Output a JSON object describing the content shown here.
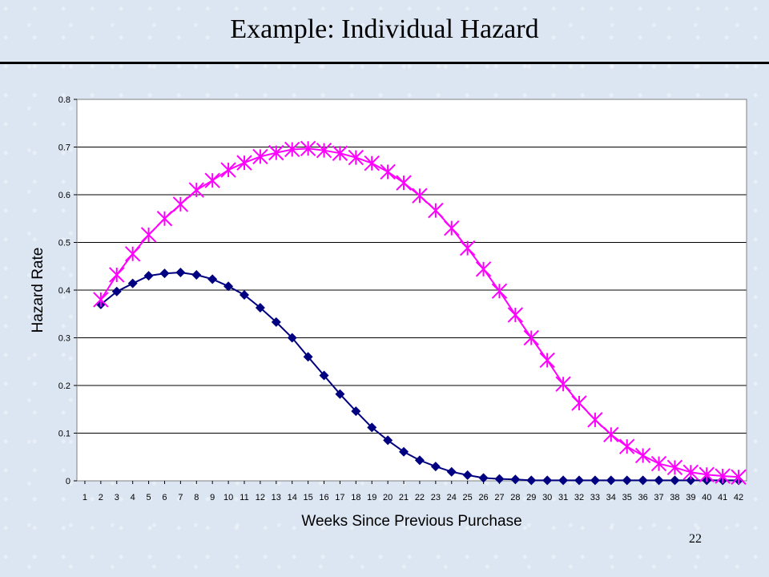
{
  "slide": {
    "title": "Example: Individual Hazard",
    "page_number": "22"
  },
  "chart_data": {
    "type": "line",
    "title": "",
    "xlabel": "Weeks Since Previous Purchase",
    "ylabel": "Hazard Rate",
    "x": [
      1,
      2,
      3,
      4,
      5,
      6,
      7,
      8,
      9,
      10,
      11,
      12,
      13,
      14,
      15,
      16,
      17,
      18,
      19,
      20,
      21,
      22,
      23,
      24,
      25,
      26,
      27,
      28,
      29,
      30,
      31,
      32,
      33,
      34,
      35,
      36,
      37,
      38,
      39,
      40,
      41,
      42
    ],
    "ylim": [
      0,
      0.8
    ],
    "yticks": [
      "0",
      "0.1",
      "0.2",
      "0.3",
      "0.4",
      "0.5",
      "0.6",
      "0.7",
      "0.8"
    ],
    "grid": true,
    "series": [
      {
        "color": "#000080",
        "marker": "diamond",
        "x": [
          2,
          3,
          4,
          5,
          6,
          7,
          8,
          9,
          10,
          11,
          12,
          13,
          14,
          15,
          16,
          17,
          18,
          19,
          20,
          21,
          22,
          23,
          24,
          25,
          26,
          27,
          28,
          29,
          30,
          31,
          32,
          33,
          34,
          35,
          36,
          37,
          38,
          39,
          40,
          41,
          42
        ],
        "values": [
          0.37,
          0.397,
          0.414,
          0.43,
          0.435,
          0.437,
          0.432,
          0.423,
          0.408,
          0.39,
          0.363,
          0.333,
          0.3,
          0.26,
          0.221,
          0.182,
          0.146,
          0.112,
          0.085,
          0.061,
          0.043,
          0.03,
          0.019,
          0.012,
          0.006,
          0.004,
          0.003,
          0.001,
          0.001,
          0.001,
          0.001,
          0.001,
          0.001,
          0.001,
          0.001,
          0.001,
          0.001,
          0.001,
          0.001,
          0.001,
          0.001
        ]
      },
      {
        "color": "#ff00ff",
        "marker": "star",
        "x": [
          2,
          3,
          4,
          5,
          6,
          7,
          8,
          9,
          10,
          11,
          12,
          13,
          14,
          15,
          16,
          17,
          18,
          19,
          20,
          21,
          22,
          23,
          24,
          25,
          26,
          27,
          28,
          29,
          30,
          31,
          32,
          33,
          34,
          35,
          36,
          37,
          38,
          39,
          40,
          41,
          42
        ],
        "values": [
          0.38,
          0.432,
          0.476,
          0.516,
          0.55,
          0.58,
          0.61,
          0.63,
          0.652,
          0.667,
          0.68,
          0.688,
          0.695,
          0.697,
          0.693,
          0.687,
          0.678,
          0.666,
          0.648,
          0.625,
          0.598,
          0.567,
          0.53,
          0.488,
          0.444,
          0.398,
          0.348,
          0.3,
          0.253,
          0.203,
          0.163,
          0.128,
          0.097,
          0.072,
          0.053,
          0.036,
          0.028,
          0.018,
          0.013,
          0.01,
          0.008
        ]
      }
    ]
  }
}
